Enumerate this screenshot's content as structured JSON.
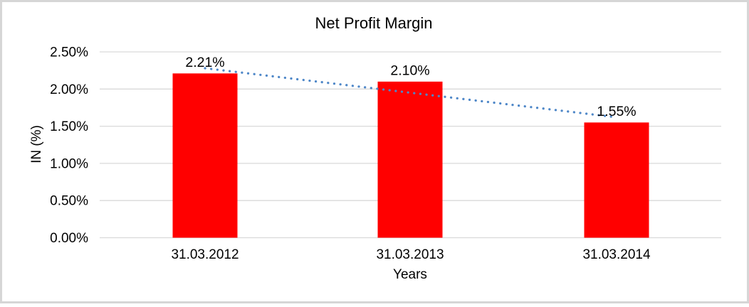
{
  "frame": {
    "background_color": "#FFFFFF",
    "border_color": "#D6D6D6"
  },
  "chart_data": {
    "type": "bar",
    "title": "Net Profit Margin",
    "xlabel": "Years",
    "ylabel": "IN (%)",
    "categories": [
      "31.03.2012",
      "31.03.2013",
      "31.03.2014"
    ],
    "values": [
      2.21,
      2.1,
      1.55
    ],
    "value_labels": [
      "2.21%",
      "2.10%",
      "1.55%"
    ],
    "y_ticks": [
      "0.00%",
      "0.50%",
      "1.00%",
      "1.50%",
      "2.00%",
      "2.50%"
    ],
    "ylim": [
      0,
      2.5
    ],
    "y_tick_step": 0.5,
    "grid": true,
    "legend": "none",
    "bar_color": "#FF0000",
    "grid_color": "#D9D9D9",
    "text_color": "#000000",
    "trendline": {
      "type": "linear",
      "style": "dotted",
      "color": "#4E87C8",
      "start_value": 2.28,
      "end_value": 1.62
    }
  }
}
